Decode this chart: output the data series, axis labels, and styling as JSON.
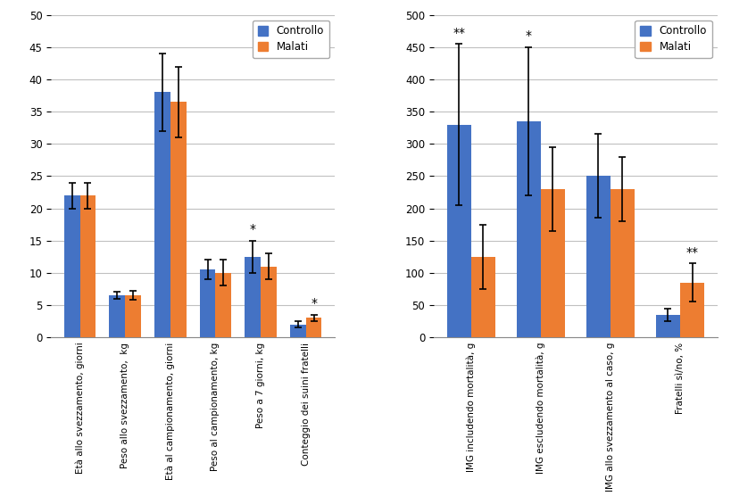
{
  "left": {
    "categories": [
      "Età allo svezzamento, giorni",
      "Peso allo svezzamento,  kg",
      "Età al campionamento, giorni",
      "Peso al campionamento, kg",
      "Peso a 7 giorni, kg",
      "Conteggio dei suini fratelli"
    ],
    "controllo_vals": [
      22,
      6.5,
      38,
      10.5,
      12.5,
      2.0
    ],
    "malati_vals": [
      22,
      6.5,
      36.5,
      10.0,
      11.0,
      3.0
    ],
    "controllo_err": [
      2.0,
      0.5,
      6.0,
      1.5,
      2.5,
      0.5
    ],
    "malati_err": [
      2.0,
      0.7,
      5.5,
      2.0,
      2.0,
      0.5
    ],
    "significance": [
      "",
      "",
      "",
      "",
      "*",
      "*"
    ],
    "sig_above_ctrl": [
      false,
      false,
      false,
      false,
      true,
      false
    ],
    "ylim": [
      0,
      50
    ],
    "yticks": [
      0,
      5,
      10,
      15,
      20,
      25,
      30,
      35,
      40,
      45,
      50
    ]
  },
  "right": {
    "categories": [
      "IMG includendo mortalità, g",
      "IMG escludendo mortalità, g",
      "IMG allo svezzamento al caso, g",
      "Fratelli sì/no, %"
    ],
    "controllo_vals": [
      330,
      335,
      250,
      35
    ],
    "malati_vals": [
      125,
      230,
      230,
      85
    ],
    "controllo_err": [
      125,
      115,
      65,
      10
    ],
    "malati_err": [
      50,
      65,
      50,
      30
    ],
    "significance": [
      "**",
      "*",
      "",
      "**"
    ],
    "sig_above_ctrl": [
      true,
      true,
      false,
      false
    ],
    "ylim": [
      0,
      500
    ],
    "yticks": [
      0,
      50,
      100,
      150,
      200,
      250,
      300,
      350,
      400,
      450,
      500
    ]
  },
  "controllo_color": "#4472C4",
  "malati_color": "#ED7D31",
  "background_color": "#FFFFFF",
  "bar_width": 0.35,
  "legend_labels": [
    "Controllo",
    "Malati"
  ]
}
